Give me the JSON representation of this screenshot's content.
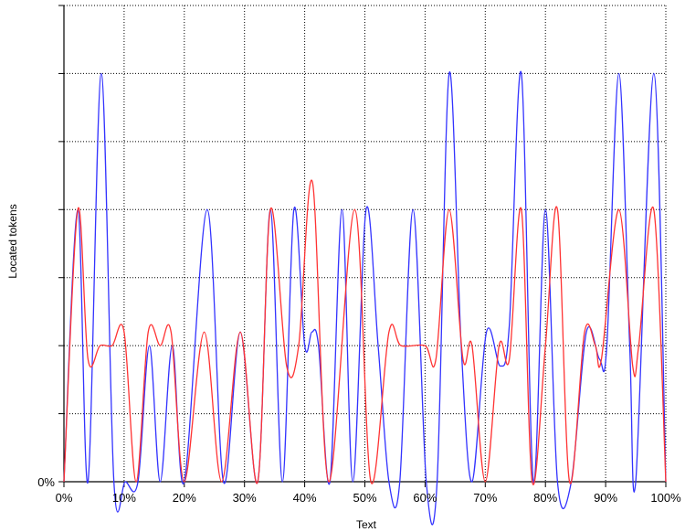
{
  "chart_data": {
    "type": "line",
    "title": "",
    "xlabel": "Text",
    "ylabel": "Located tokens",
    "x_ticks": [
      "0%",
      "10%",
      "20%",
      "30%",
      "40%",
      "50%",
      "60%",
      "70%",
      "80%",
      "90%",
      "100%"
    ],
    "y_ticks": [
      "0%"
    ],
    "xlim": [
      0,
      100
    ],
    "ylim": [
      0,
      7
    ],
    "grid": true,
    "legend": "none",
    "series": [
      {
        "color": "#3333ff",
        "points": [
          [
            0,
            0
          ],
          [
            2.3,
            4
          ],
          [
            4.0,
            0
          ],
          [
            6.2,
            6
          ],
          [
            8.3,
            0
          ],
          [
            10.2,
            0
          ],
          [
            12.3,
            0
          ],
          [
            14.2,
            2
          ],
          [
            16.0,
            0
          ],
          [
            18.0,
            2
          ],
          [
            20.0,
            0
          ],
          [
            23.8,
            4
          ],
          [
            26.5,
            0
          ],
          [
            29.3,
            2.2
          ],
          [
            32.2,
            0
          ],
          [
            34.3,
            4
          ],
          [
            36.3,
            0
          ],
          [
            38.2,
            4
          ],
          [
            40.0,
            2
          ],
          [
            41.2,
            2.2
          ],
          [
            42.3,
            2
          ],
          [
            44.2,
            0
          ],
          [
            46.2,
            4
          ],
          [
            48.0,
            0
          ],
          [
            50.2,
            4
          ],
          [
            52.2,
            2
          ],
          [
            54.0,
            0
          ],
          [
            55.8,
            0
          ],
          [
            58.0,
            4
          ],
          [
            60.2,
            0
          ],
          [
            62.0,
            0
          ],
          [
            64.0,
            6
          ],
          [
            66.0,
            2
          ],
          [
            67.8,
            0
          ],
          [
            70.2,
            2.2
          ],
          [
            72.5,
            1.7
          ],
          [
            74.0,
            2.3
          ],
          [
            76.0,
            6
          ],
          [
            78.0,
            0
          ],
          [
            80.0,
            4
          ],
          [
            82.0,
            0
          ],
          [
            84.3,
            0
          ],
          [
            86.8,
            2.2
          ],
          [
            89.0,
            1.8
          ],
          [
            90.2,
            2
          ],
          [
            92.2,
            6
          ],
          [
            94.0,
            2
          ],
          [
            95.0,
            0
          ],
          [
            98.0,
            6
          ],
          [
            100,
            0
          ]
        ]
      },
      {
        "color": "#ff3333",
        "points": [
          [
            0,
            0
          ],
          [
            2.3,
            4
          ],
          [
            4.0,
            1.8
          ],
          [
            6.0,
            2
          ],
          [
            8.0,
            2
          ],
          [
            10.0,
            2.2
          ],
          [
            12.0,
            0
          ],
          [
            14.0,
            2.2
          ],
          [
            16.0,
            2
          ],
          [
            17.8,
            2.2
          ],
          [
            20.0,
            0
          ],
          [
            23.3,
            2.2
          ],
          [
            26.2,
            0
          ],
          [
            29.3,
            2.2
          ],
          [
            32.2,
            0
          ],
          [
            34.3,
            4
          ],
          [
            37.0,
            1.7
          ],
          [
            39.0,
            2
          ],
          [
            41.3,
            4.4
          ],
          [
            44.0,
            0
          ],
          [
            48.3,
            4
          ],
          [
            51.0,
            0
          ],
          [
            54.0,
            2.2
          ],
          [
            56.0,
            2
          ],
          [
            60.0,
            2
          ],
          [
            61.8,
            1.8
          ],
          [
            64.0,
            4
          ],
          [
            66.3,
            1.8
          ],
          [
            67.8,
            2
          ],
          [
            70.0,
            0
          ],
          [
            72.3,
            2
          ],
          [
            74.0,
            1.8
          ],
          [
            76.0,
            4
          ],
          [
            77.8,
            0
          ],
          [
            80.0,
            2
          ],
          [
            82.0,
            4
          ],
          [
            84.0,
            0
          ],
          [
            86.5,
            2.2
          ],
          [
            88.3,
            2
          ],
          [
            89.3,
            1.8
          ],
          [
            92.2,
            4
          ],
          [
            94.5,
            1.7
          ],
          [
            95.5,
            2
          ],
          [
            98.0,
            4
          ],
          [
            100,
            0
          ]
        ]
      }
    ]
  }
}
